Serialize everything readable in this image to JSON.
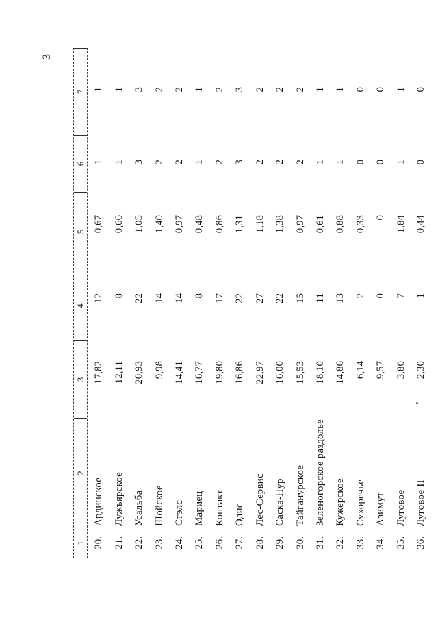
{
  "page": {
    "number": "3"
  },
  "table": {
    "headers": [
      "1",
      "2",
      "3",
      "4",
      "5",
      "6",
      "7"
    ],
    "rows": [
      {
        "num": "20.",
        "name": "Ардинское",
        "c3": "17,82",
        "c4": "12",
        "c5": "0,67",
        "c6": "1",
        "c7": "1"
      },
      {
        "num": "21.",
        "name": "Лужъярское",
        "c3": "12,11",
        "c4": "8",
        "c5": "0,66",
        "c6": "1",
        "c7": "1"
      },
      {
        "num": "22.",
        "name": "Усадьба",
        "c3": "20,93",
        "c4": "22",
        "c5": "1,05",
        "c6": "3",
        "c7": "3"
      },
      {
        "num": "23.",
        "name": "Шойское",
        "c3": "9,98",
        "c4": "14",
        "c5": "1,40",
        "c6": "2",
        "c7": "2"
      },
      {
        "num": "24.",
        "name": "Стэлс",
        "c3": "14,41",
        "c4": "14",
        "c5": "0,97",
        "c6": "2",
        "c7": "2"
      },
      {
        "num": "25.",
        "name": "Мариец",
        "c3": "16,77",
        "c4": "8",
        "c5": "0,48",
        "c6": "1",
        "c7": "1"
      },
      {
        "num": "26.",
        "name": "Контакт",
        "c3": "19,80",
        "c4": "17",
        "c5": "0,86",
        "c6": "2",
        "c7": "2"
      },
      {
        "num": "27.",
        "name": "Одис",
        "c3": "16,86",
        "c4": "22",
        "c5": "1,31",
        "c6": "3",
        "c7": "3"
      },
      {
        "num": "28.",
        "name": "Лес-Сервис",
        "c3": "22,97",
        "c4": "27",
        "c5": "1,18",
        "c6": "2",
        "c7": "2"
      },
      {
        "num": "29.",
        "name": "Саска-Нур",
        "c3": "16,00",
        "c4": "22",
        "c5": "1,38",
        "c6": "2",
        "c7": "2"
      },
      {
        "num": "30.",
        "name": "Тайганурское",
        "c3": "15,53",
        "c4": "15",
        "c5": "0,97",
        "c6": "2",
        "c7": "2"
      },
      {
        "num": "31.",
        "name": "Зеленогорское раздолье",
        "c3": "18,10",
        "c4": "11",
        "c5": "0,61",
        "c6": "1",
        "c7": "1"
      },
      {
        "num": "32.",
        "name": "Кужерское",
        "c3": "14,86",
        "c4": "13",
        "c5": "0,88",
        "c6": "1",
        "c7": "1"
      },
      {
        "num": "33.",
        "name": "Сухоречье",
        "c3": "6,14",
        "c4": "2",
        "c5": "0,33",
        "c6": "0",
        "c7": "0"
      },
      {
        "num": "34.",
        "name": "Азимут",
        "c3": "9,57",
        "c4": "0",
        "c5": "0",
        "c6": "0",
        "c7": "0"
      },
      {
        "num": "35.",
        "name": "Луговое",
        "c3": "3,80",
        "c4": "7",
        "c5": "1,84",
        "c6": "1",
        "c7": "1"
      },
      {
        "num": "36.",
        "name": "Луговое II",
        "c3": "2,30",
        "c4": "1",
        "c5": "0,44",
        "c6": "0",
        "c7": "0"
      }
    ]
  }
}
